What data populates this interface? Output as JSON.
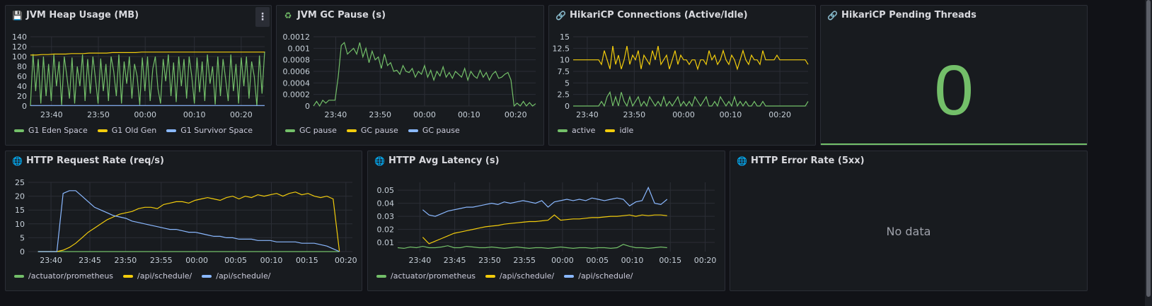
{
  "colors": {
    "green": "#73bf69",
    "yellow": "#f2cc0c",
    "blue": "#8ab8ff",
    "grid": "#2b2e36"
  },
  "panels": {
    "heap": {
      "title": "JVM Heap Usage (MB)",
      "icon": "floppy-disk-icon",
      "legend": [
        "G1 Eden Space",
        "G1 Old Gen",
        "G1 Survivor Space"
      ]
    },
    "gc": {
      "title": "JVM GC Pause (s)",
      "icon": "recycle-icon",
      "legend": [
        "GC pause",
        "GC pause",
        "GC pause"
      ]
    },
    "hikari": {
      "title": "HikariCP Connections (Active/Idle)",
      "icon": "link-icon",
      "legend": [
        "active",
        "idle"
      ]
    },
    "pending": {
      "title": "HikariCP Pending Threads",
      "icon": "link-icon",
      "value": "0"
    },
    "reqrate": {
      "title": "HTTP Request Rate (req/s)",
      "icon": "globe-icon",
      "legend": [
        "/actuator/prometheus",
        "/api/schedule/",
        "/api/schedule/"
      ]
    },
    "latency": {
      "title": "HTTP Avg Latency (s)",
      "icon": "globe-icon",
      "legend": [
        "/actuator/prometheus",
        "/api/schedule/",
        "/api/schedule/"
      ]
    },
    "errors": {
      "title": "HTTP Error Rate (5xx)",
      "icon": "globe-icon",
      "nodata": "No data"
    }
  },
  "chart_data": [
    {
      "id": "heap",
      "type": "line",
      "x_ticks": [
        "23:40",
        "23:50",
        "00:00",
        "00:10",
        "00:20"
      ],
      "y_ticks": [
        "0",
        "20",
        "40",
        "60",
        "80",
        "100",
        "120",
        "140"
      ],
      "ylim": [
        0,
        140
      ],
      "series": [
        {
          "name": "G1 Eden Space",
          "color": "green",
          "values": [
            0,
            105,
            30,
            95,
            5,
            100,
            20,
            85,
            10,
            104,
            40,
            90,
            2,
            100,
            60,
            15,
            98,
            5,
            80,
            40,
            104,
            10,
            95,
            25,
            100,
            55,
            5,
            96,
            30,
            85,
            10,
            100,
            70,
            20,
            104,
            5,
            90,
            45,
            100,
            15,
            85,
            60,
            2,
            98,
            30,
            100,
            10,
            75,
            100,
            35,
            5,
            95,
            50,
            104,
            20,
            88,
            8,
            100,
            40,
            95,
            15,
            100,
            60,
            5,
            98,
            28,
            90,
            10,
            104,
            45,
            80,
            3,
            100,
            20,
            95,
            55,
            10,
            104,
            30,
            85,
            5,
            98,
            40,
            100,
            15,
            90,
            60,
            0,
            102,
            25,
            110
          ]
        },
        {
          "name": "G1 Old Gen",
          "color": "yellow",
          "values": [
            103,
            103,
            104,
            104,
            105,
            105,
            105,
            106,
            106,
            106,
            107,
            107,
            107,
            107,
            108,
            108,
            108,
            108,
            108,
            109,
            109,
            109,
            109,
            109,
            109,
            109,
            109,
            109,
            109,
            109,
            109,
            109,
            109,
            109,
            109,
            109,
            109,
            109,
            109,
            109,
            109
          ]
        },
        {
          "name": "G1 Survivor Space",
          "color": "blue",
          "values": [
            1,
            1,
            1,
            1,
            1,
            1,
            1,
            1,
            1,
            1,
            1,
            1,
            1,
            1,
            1,
            1,
            1,
            1,
            1,
            1,
            1
          ]
        }
      ]
    },
    {
      "id": "gc",
      "type": "line",
      "x_ticks": [
        "23:40",
        "23:50",
        "00:00",
        "00:10",
        "00:20"
      ],
      "y_ticks": [
        "0",
        "0.0002",
        "0.0004",
        "0.0006",
        "0.0008",
        "0.001",
        "0.0012"
      ],
      "ylim": [
        0,
        0.0012
      ],
      "series": [
        {
          "name": "GC pause",
          "color": "green",
          "values": [
            0,
            8e-05,
            0,
            0.0001,
            5e-05,
            0.0001,
            0.0001,
            0.0001,
            0.0005,
            0.00105,
            0.0011,
            0.0009,
            0.00095,
            0.001,
            0.0009,
            0.0011,
            0.00085,
            0.001,
            0.00075,
            0.00095,
            0.0008,
            0.00085,
            0.00065,
            0.0009,
            0.0007,
            0.00075,
            0.0006,
            0.00062,
            0.00055,
            0.0007,
            0.0006,
            0.00058,
            0.00065,
            0.0005,
            0.0006,
            0.00055,
            0.0007,
            0.0005,
            0.00062,
            0.00045,
            0.0006,
            0.00052,
            0.00068,
            0.0005,
            0.00058,
            0.00048,
            0.0006,
            0.00055,
            0.0005,
            0.00065,
            0.00045,
            0.0006,
            0.00052,
            0.00048,
            0.00062,
            0.0005,
            0.00058,
            0.00045,
            0.00055,
            0.0006,
            0.00048,
            0.0005,
            0.00055,
            0.00058,
            0.00045,
            0.0,
            5e-05,
            0.0,
            8e-05,
            0.0,
            6e-05,
            0.0,
            4e-05
          ]
        },
        {
          "name": "GC pause",
          "color": "yellow",
          "values": []
        },
        {
          "name": "GC pause",
          "color": "blue",
          "values": []
        }
      ]
    },
    {
      "id": "hikari",
      "type": "line",
      "x_ticks": [
        "23:40",
        "23:50",
        "00:00",
        "00:10",
        "00:20"
      ],
      "y_ticks": [
        "0",
        "2.5",
        "5",
        "7.5",
        "10",
        "12.5",
        "15"
      ],
      "ylim": [
        0,
        15
      ],
      "series": [
        {
          "name": "active",
          "color": "green",
          "values": [
            0,
            0,
            0,
            0,
            0,
            0,
            0,
            0,
            0,
            0,
            1,
            0,
            2,
            3,
            0,
            2,
            0,
            3,
            1,
            0,
            2,
            0,
            1,
            2,
            0,
            1,
            0,
            2,
            1,
            0,
            1,
            0,
            2,
            0,
            1,
            0,
            1,
            2,
            0,
            1,
            0,
            1,
            0,
            2,
            1,
            0,
            1,
            2,
            0,
            0,
            1,
            0,
            2,
            1,
            0,
            1,
            0,
            2,
            0,
            1,
            0,
            1,
            0,
            0,
            1,
            0,
            0,
            1,
            0,
            0,
            0,
            0,
            0,
            0,
            0,
            0,
            0,
            0,
            0,
            0,
            0,
            0,
            0,
            1
          ]
        },
        {
          "name": "idle",
          "color": "yellow",
          "values": [
            10,
            10,
            10,
            10,
            10,
            10,
            10,
            10,
            10,
            10,
            9,
            12,
            10,
            8,
            13,
            9,
            11,
            8,
            10,
            13,
            9,
            11,
            10,
            12,
            8,
            11,
            10,
            9,
            12,
            10,
            13,
            9,
            10,
            11,
            8,
            10,
            12,
            9,
            11,
            10,
            10,
            9,
            10,
            10,
            8,
            10,
            10,
            9,
            12,
            10,
            11,
            9,
            10,
            12,
            10,
            9,
            11,
            10,
            8,
            10,
            12,
            10,
            9,
            11,
            10,
            10,
            9,
            12,
            10,
            10,
            10,
            10,
            11,
            10,
            10,
            10,
            10,
            10,
            10,
            10,
            10,
            10,
            10,
            9
          ]
        }
      ]
    },
    {
      "id": "reqrate",
      "type": "line",
      "x_ticks": [
        "23:40",
        "23:45",
        "23:50",
        "23:55",
        "00:00",
        "00:05",
        "00:10",
        "00:15",
        "00:20"
      ],
      "y_ticks": [
        "0",
        "5",
        "10",
        "15",
        "20",
        "25"
      ],
      "ylim": [
        0,
        25
      ],
      "series": [
        {
          "name": "/actuator/prometheus",
          "color": "green",
          "values": [
            0,
            0,
            0,
            0,
            0,
            0,
            0,
            0,
            0,
            0,
            0,
            0,
            0,
            0,
            0,
            0,
            0,
            0,
            0,
            0,
            0,
            0,
            0,
            0,
            0,
            0,
            0,
            0,
            0,
            0,
            0,
            0,
            0,
            0,
            0,
            0,
            0,
            0,
            0,
            0,
            0,
            0,
            0,
            0,
            0,
            0,
            0,
            0,
            0
          ]
        },
        {
          "name": "/api/schedule/",
          "color": "yellow",
          "values": [
            0,
            0,
            0,
            0,
            0.5,
            1.5,
            3,
            5,
            7,
            8.5,
            10,
            11.5,
            12.5,
            13.5,
            14,
            14.5,
            15.5,
            16,
            16,
            15.5,
            17,
            17.5,
            18,
            18,
            17.5,
            18.5,
            19,
            19.5,
            19,
            18.5,
            19.5,
            20,
            19,
            20,
            19.5,
            20.5,
            20,
            20.5,
            21,
            20,
            21,
            21.5,
            20.5,
            21,
            20,
            19.5,
            20,
            19,
            0
          ]
        },
        {
          "name": "/api/schedule/",
          "color": "blue",
          "values": [
            0,
            0,
            0,
            0,
            21,
            22,
            22,
            20,
            18,
            16,
            15,
            14,
            13,
            12.5,
            12,
            11,
            10.5,
            10,
            9.5,
            9,
            8.5,
            8,
            8,
            7.5,
            7,
            7,
            6.5,
            6,
            5.5,
            5.5,
            5,
            5,
            4.5,
            4.5,
            4.5,
            4,
            4,
            4,
            3.5,
            3.5,
            3.5,
            3.5,
            3,
            3,
            3,
            2.5,
            2,
            1,
            0
          ]
        }
      ]
    },
    {
      "id": "latency",
      "type": "line",
      "x_ticks": [
        "23:40",
        "23:45",
        "23:50",
        "23:55",
        "00:00",
        "00:05",
        "00:10",
        "00:15",
        "00:20"
      ],
      "y_ticks": [
        "0.01",
        "0.02",
        "0.03",
        "0.04",
        "0.05"
      ],
      "ylim": [
        0.003,
        0.056
      ],
      "series": [
        {
          "name": "/actuator/prometheus",
          "color": "green",
          "values": [
            0.006,
            0.0055,
            0.0065,
            0.006,
            0.007,
            0.006,
            0.006,
            0.0065,
            0.0075,
            0.006,
            0.006,
            0.007,
            0.0065,
            0.006,
            0.006,
            0.0065,
            0.006,
            0.0055,
            0.006,
            0.0065,
            0.006,
            0.0055,
            0.006,
            0.006,
            0.0055,
            0.006,
            0.0065,
            0.006,
            0.0055,
            0.006,
            0.006,
            0.0055,
            0.006,
            0.006,
            0.0055,
            0.006,
            0.0085,
            0.007,
            0.006,
            0.006,
            0.0055,
            0.006,
            0.0065,
            0.006
          ]
        },
        {
          "name": "/api/schedule/",
          "color": "yellow",
          "values": [
            null,
            null,
            null,
            null,
            0.014,
            0.009,
            0.011,
            0.013,
            0.015,
            0.017,
            0.018,
            0.019,
            0.02,
            0.021,
            0.022,
            0.0225,
            0.023,
            0.024,
            0.0245,
            0.025,
            0.0255,
            0.026,
            0.026,
            0.0265,
            0.027,
            0.031,
            0.027,
            0.0275,
            0.028,
            0.028,
            0.0285,
            0.029,
            0.029,
            0.0295,
            0.03,
            0.03,
            0.0305,
            0.031,
            0.03,
            0.031,
            0.0305,
            0.031,
            0.031,
            0.0305
          ]
        },
        {
          "name": "/api/schedule/",
          "color": "blue",
          "values": [
            null,
            null,
            null,
            null,
            0.035,
            0.031,
            0.03,
            0.032,
            0.034,
            0.035,
            0.036,
            0.037,
            0.037,
            0.038,
            0.039,
            0.04,
            0.039,
            0.041,
            0.04,
            0.041,
            0.042,
            0.041,
            0.04,
            0.042,
            0.037,
            0.041,
            0.042,
            0.043,
            0.042,
            0.043,
            0.042,
            0.044,
            0.043,
            0.042,
            0.043,
            0.044,
            0.043,
            0.038,
            0.041,
            0.042,
            0.052,
            0.04,
            0.039,
            0.043
          ]
        }
      ]
    }
  ]
}
